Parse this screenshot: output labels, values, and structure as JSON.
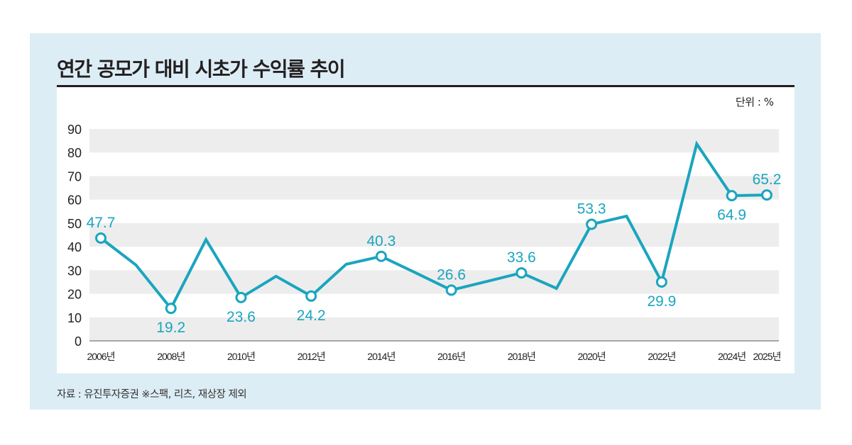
{
  "title": "연간 공모가 대비 시초가 수익률 추이",
  "unit_label": "단위 : %",
  "source": "자료 : 유진투자증권 ※스팩, 리츠, 재상장 제외",
  "colors": {
    "panel_bg": "#dcedf5",
    "line": "#1aa5bf",
    "band": "#ededed",
    "text": "#231f20"
  },
  "chart_data": {
    "type": "line",
    "title": "연간 공모가 대비 시초가 수익률 추이",
    "xlabel": "",
    "ylabel": "단위 : %",
    "ylim": [
      0,
      90
    ],
    "yticks": [
      0,
      10,
      20,
      30,
      40,
      50,
      60,
      70,
      80,
      90
    ],
    "grid": "alternating horizontal bands",
    "legend": "none",
    "x": [
      "2006",
      "2007",
      "2008",
      "2009",
      "2010",
      "2011",
      "2012",
      "2013",
      "2014",
      "2015",
      "2016",
      "2017",
      "2018",
      "2019",
      "2020",
      "2021",
      "2022",
      "2023",
      "2024",
      "2025"
    ],
    "x_tick_labels": [
      {
        "year": "2006",
        "label": "2006년"
      },
      {
        "year": "2008",
        "label": "2008년"
      },
      {
        "year": "2010",
        "label": "2010년"
      },
      {
        "year": "2012",
        "label": "2012년"
      },
      {
        "year": "2014",
        "label": "2014년"
      },
      {
        "year": "2016",
        "label": "2016년"
      },
      {
        "year": "2018",
        "label": "2018년"
      },
      {
        "year": "2020",
        "label": "2020년"
      },
      {
        "year": "2022",
        "label": "2022년"
      },
      {
        "year": "2024",
        "label": "2024년"
      },
      {
        "year": "2025",
        "label": "2025년"
      }
    ],
    "series": [
      {
        "name": "공모가 대비 시초가 수익률",
        "values": [
          47.7,
          36.8,
          19.2,
          47.1,
          23.6,
          32.2,
          24.2,
          37.1,
          40.3,
          33.5,
          26.6,
          30.1,
          33.6,
          27.3,
          53.3,
          56.6,
          29.9,
          85.9,
          64.9,
          65.2
        ],
        "markers": [
          true,
          false,
          true,
          false,
          true,
          false,
          true,
          false,
          true,
          false,
          true,
          false,
          true,
          false,
          true,
          false,
          true,
          false,
          true,
          true
        ],
        "data_labels": [
          {
            "year": "2006",
            "text": "47.7",
            "position": "above"
          },
          {
            "year": "2008",
            "text": "19.2",
            "position": "below"
          },
          {
            "year": "2010",
            "text": "23.6",
            "position": "below"
          },
          {
            "year": "2012",
            "text": "24.2",
            "position": "below"
          },
          {
            "year": "2014",
            "text": "40.3",
            "position": "above"
          },
          {
            "year": "2016",
            "text": "26.6",
            "position": "above"
          },
          {
            "year": "2018",
            "text": "33.6",
            "position": "above"
          },
          {
            "year": "2020",
            "text": "53.3",
            "position": "above"
          },
          {
            "year": "2022",
            "text": "29.9",
            "position": "below"
          },
          {
            "year": "2024",
            "text": "64.9",
            "position": "below"
          },
          {
            "year": "2025",
            "text": "65.2",
            "position": "above"
          }
        ]
      }
    ]
  }
}
